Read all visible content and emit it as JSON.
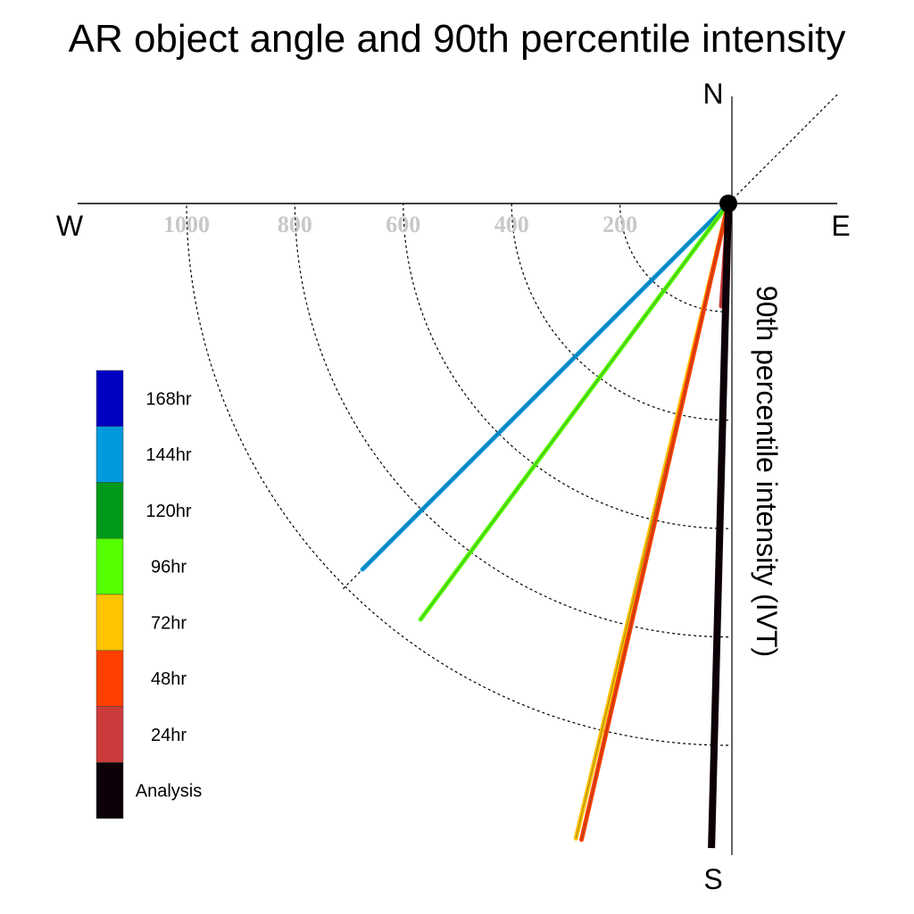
{
  "chart_data": {
    "type": "polar-vector",
    "title": "AR object angle and 90th percentile intensity",
    "compass": {
      "north": "N",
      "south": "S",
      "west": "W",
      "east": "E"
    },
    "radial_label": "90th percentile intensity (IVT)",
    "radial_ticks": [
      200,
      400,
      600,
      800,
      1000
    ],
    "rmax": 1200,
    "legend": [
      {
        "label": "168hr",
        "color": "#0000c0"
      },
      {
        "label": "144hr",
        "color": "#0099dd"
      },
      {
        "label": "120hr",
        "color": "#009a1a"
      },
      {
        "label": "96hr",
        "color": "#55ff00"
      },
      {
        "label": "72hr",
        "color": "#ffc400"
      },
      {
        "label": "48hr",
        "color": "#ff4000"
      },
      {
        "label": "24hr",
        "color": "#cc3b3b"
      },
      {
        "label": "Analysis",
        "color": "#0d0008"
      }
    ],
    "series": [
      {
        "name": "Analysis",
        "angle_deg": 181.5,
        "intensity": 1190,
        "color": "#0d0008"
      },
      {
        "name": "24hr",
        "angle_deg": 184.0,
        "intensity": 190,
        "color": "#cc3b3b"
      },
      {
        "name": "48hr",
        "angle_deg": 193.0,
        "intensity": 1205,
        "color": "#ff4000"
      },
      {
        "name": "72hr",
        "angle_deg": 193.5,
        "intensity": 1205,
        "color": "#ffc400"
      },
      {
        "name": "96hr",
        "angle_deg": 216.5,
        "intensity": 955,
        "color": "#55ff00"
      },
      {
        "name": "144hr",
        "angle_deg": 225.0,
        "intensity": 955,
        "color": "#0099dd"
      }
    ]
  }
}
